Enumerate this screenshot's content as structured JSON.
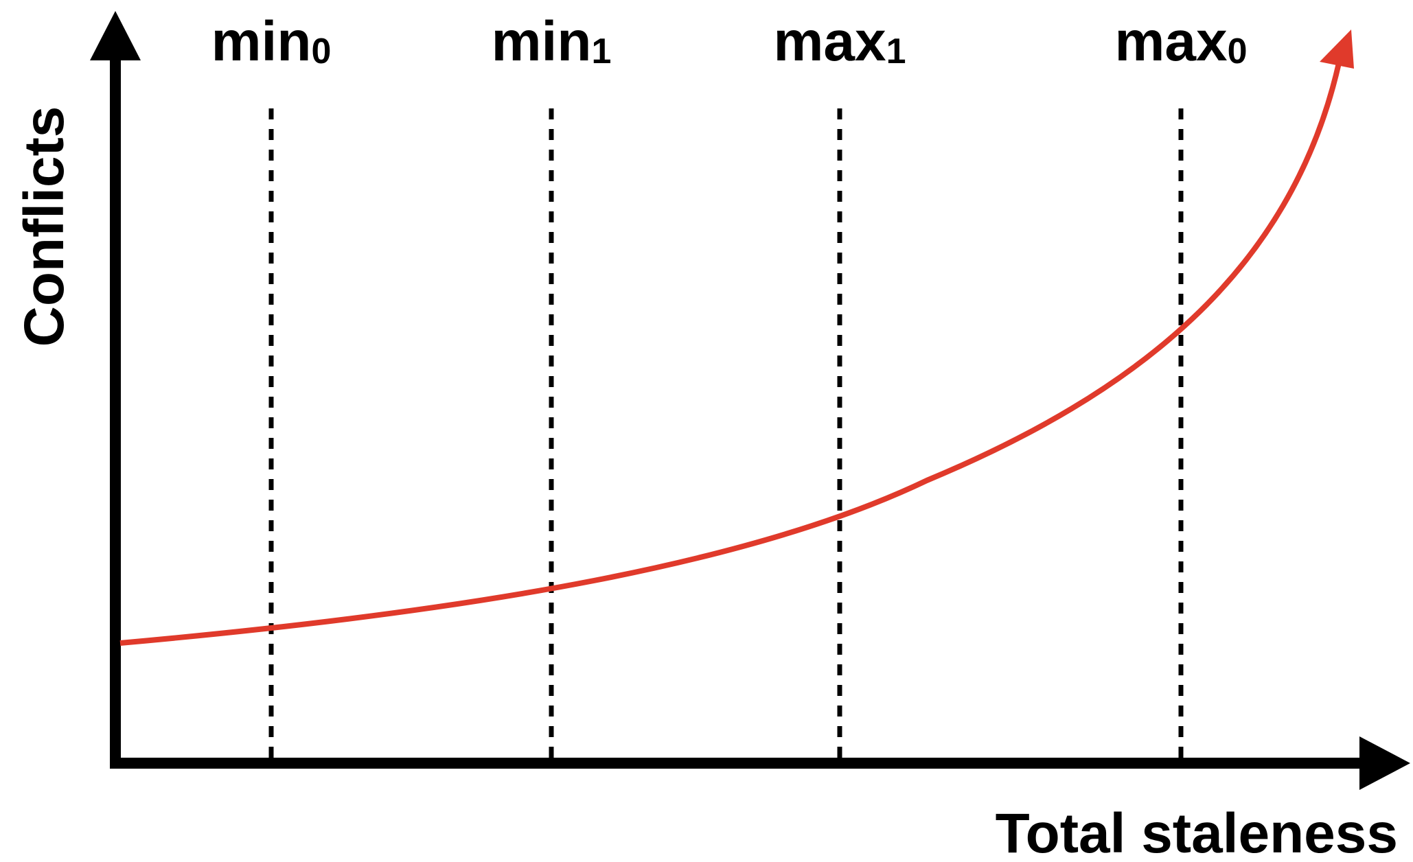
{
  "chart_data": {
    "type": "line",
    "xlabel": "Total staleness",
    "ylabel": "Conflicts",
    "markers": [
      {
        "base": "min",
        "subscript": "0"
      },
      {
        "base": "min",
        "subscript": "1"
      },
      {
        "base": "max",
        "subscript": "1"
      },
      {
        "base": "max",
        "subscript": "0"
      }
    ],
    "colors": {
      "curve": "#e03a2b",
      "axes": "#000000"
    }
  }
}
